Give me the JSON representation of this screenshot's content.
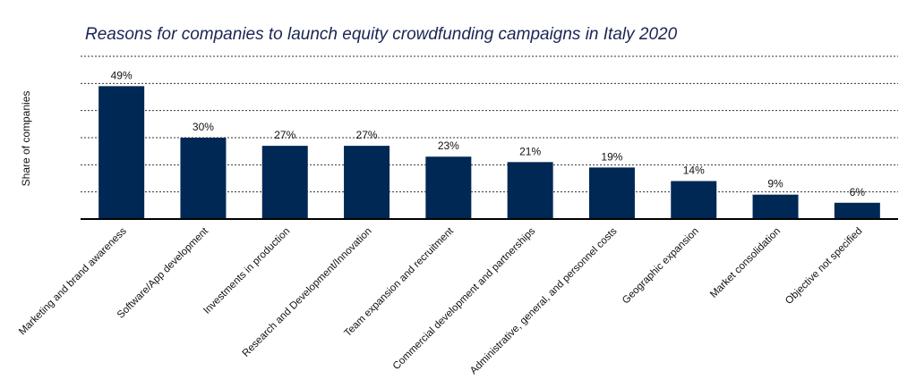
{
  "chart_data": {
    "type": "bar",
    "title": "Reasons for companies to launch equity crowdfunding campaigns in Italy 2020",
    "y_label": "Share of companies",
    "categories": [
      "Marketing and brand awareness",
      "Software/App development",
      "Investments in production",
      "Research and Development/Innovation",
      "Team expansion and recruitment",
      "Commercial development and partnerships",
      "Administrative, general, and personnel costs",
      "Geographic expansion",
      "Market consolidation",
      "Objective not specified"
    ],
    "values": [
      49,
      30,
      27,
      27,
      23,
      21,
      19,
      14,
      9,
      6
    ],
    "value_labels": [
      "49%",
      "30%",
      "27%",
      "27%",
      "23%",
      "21%",
      "19%",
      "14%",
      "9%",
      "6%"
    ],
    "color": "#002855",
    "ylim": [
      0,
      60
    ],
    "yticks": [
      10,
      20,
      30,
      40,
      50,
      60
    ],
    "grid": true
  }
}
